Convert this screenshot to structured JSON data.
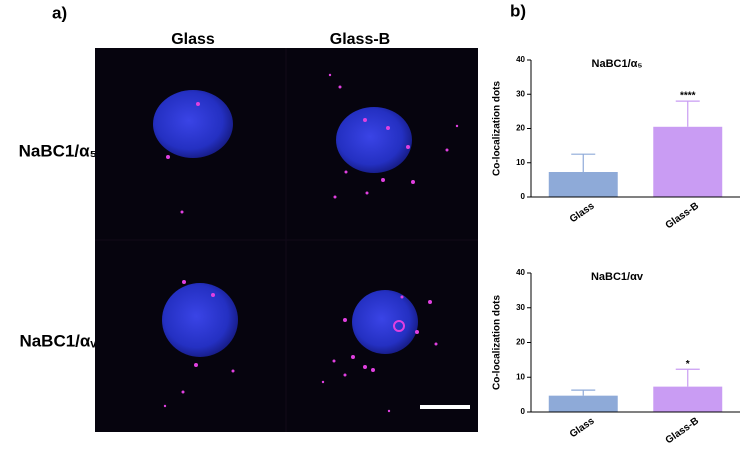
{
  "panel_a": {
    "label": "a)",
    "columns": [
      "Glass",
      "Glass-B"
    ],
    "rows": [
      "NaBC1/α₅",
      "NaBC1/αᵥ"
    ]
  },
  "panel_b": {
    "label": "b)"
  },
  "chart_data": [
    {
      "type": "bar",
      "title": "NaBC1/α₅",
      "ylabel": "Co-localization dots",
      "categories": [
        "Glass",
        "Glass-B"
      ],
      "values": [
        7.3,
        20.5
      ],
      "errors": [
        5.2,
        7.5
      ],
      "colors": [
        "#8eaad8",
        "#c99cf3"
      ],
      "significance": {
        "Glass-B": "****"
      },
      "ylim": [
        0,
        40
      ],
      "yticks": [
        0,
        10,
        20,
        30,
        40
      ]
    },
    {
      "type": "bar",
      "title": "NaBC1/αv",
      "ylabel": "Co-localization dots",
      "categories": [
        "Glass",
        "Glass-B"
      ],
      "values": [
        4.7,
        7.3
      ],
      "errors": [
        1.6,
        5.0
      ],
      "colors": [
        "#8eaad8",
        "#c99cf3"
      ],
      "significance": {
        "Glass-B": "*"
      },
      "ylim": [
        0,
        40
      ],
      "yticks": [
        0,
        10,
        20,
        30,
        40
      ]
    }
  ]
}
